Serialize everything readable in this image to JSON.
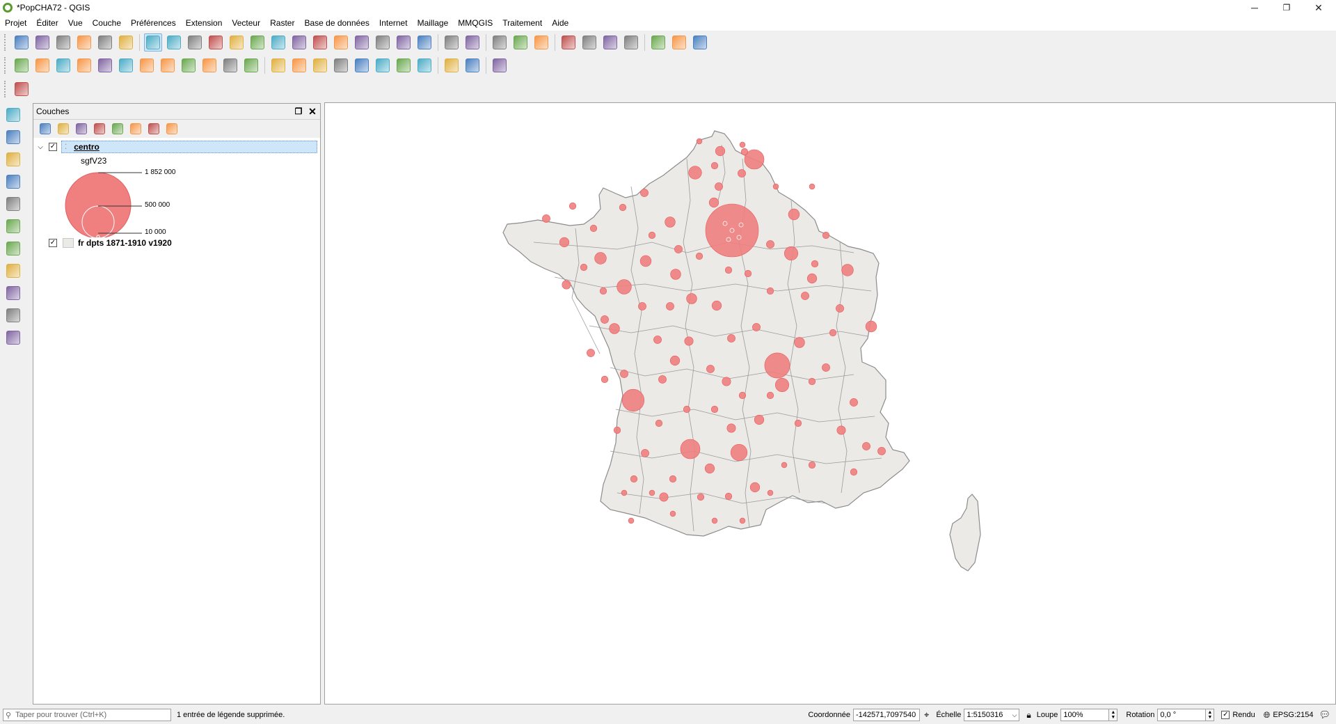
{
  "window": {
    "title": "*PopCHA72 - QGIS",
    "min": "─",
    "max": "❐",
    "close": "✕"
  },
  "menu": [
    "Projet",
    "Éditer",
    "Vue",
    "Couche",
    "Préférences",
    "Extension",
    "Vecteur",
    "Raster",
    "Base de données",
    "Internet",
    "Maillage",
    "MMQGIS",
    "Traitement",
    "Aide"
  ],
  "toolbar1_icons": [
    "new-project-icon",
    "open-project-icon",
    "save-project-icon",
    "new-print-layout-icon",
    "layout-manager-icon",
    "style-manager-icon",
    "|",
    "pan-icon",
    "pan-to-selection-icon",
    "zoom-in-icon",
    "zoom-out-icon",
    "zoom-native-icon",
    "zoom-full-icon",
    "zoom-to-selection-icon",
    "zoom-to-layer-icon",
    "zoom-last-icon",
    "zoom-next-icon",
    "new-map-view-icon",
    "new-bookmark-icon",
    "show-bookmarks-icon",
    "refresh-icon",
    "|",
    "identify-icon",
    "run-action-icon",
    "|",
    "select-features-icon",
    "select-by-value-icon",
    "deselect-icon",
    "|",
    "attribute-table-icon",
    "field-calculator-icon",
    "processing-toolbox-icon",
    "statistics-icon",
    "|",
    "measure-icon",
    "map-tips-icon",
    "text-annotation-icon"
  ],
  "toolbar2_icons": [
    "current-edits-icon",
    "toggle-editing-icon",
    "save-edits-icon",
    "digitize-icon",
    "vertex-tool-icon",
    "modify-attributes-icon",
    "delete-selected-icon",
    "cut-features-icon",
    "copy-features-icon",
    "paste-features-icon",
    "undo-icon",
    "redo-icon",
    "|",
    "label-toolbar-icon",
    "diagram-toolbar-icon",
    "highlight-pinned-labels-icon",
    "pin-labels-icon",
    "show-hide-labels-icon",
    "move-label-icon",
    "rotate-label-icon",
    "change-label-icon",
    "|",
    "qgis-cloud-icon",
    "python-console-icon",
    "|",
    "help-icon"
  ],
  "toolbar3_icons": [
    "mmqgis-icon"
  ],
  "left_toolbar_icons": [
    "add-vector-layer-icon",
    "add-raster-layer-icon",
    "add-mesh-layer-icon",
    "add-delimited-text-icon",
    "add-geopackage-icon",
    "add-spatialite-icon",
    "add-postgis-icon",
    "add-wms-icon",
    "add-wfs-icon",
    "add-wcs-icon",
    "add-virtual-layer-icon"
  ],
  "layers_panel": {
    "title": "Couches",
    "tool_icons": [
      "style-layer-icon",
      "add-group-icon",
      "manage-map-themes-icon",
      "filter-legend-icon",
      "filter-expression-icon",
      "expand-all-icon",
      "collapse-all-icon",
      "remove-layer-icon"
    ],
    "layers": [
      {
        "name": "centro",
        "checked": "✓",
        "field": "sgfV23",
        "legend_values": [
          "1 852 000",
          "500 000",
          "10 000"
        ]
      },
      {
        "name": "fr dpts 1871-1910 v1920",
        "checked": "✓"
      }
    ]
  },
  "status": {
    "search_placeholder": "Taper pour trouver (Ctrl+K)",
    "message": "1 entrée de légende supprimée.",
    "coord_label": "Coordonnée",
    "coord_value": "-142571,7097540",
    "scale_label": "Échelle",
    "scale_value": "1:5150316",
    "magnifier_label": "Loupe",
    "magnifier_value": "100%",
    "rotation_label": "Rotation",
    "rotation_value": "0,0 °",
    "render_label": "Rendu",
    "crs": "EPSG:2154"
  },
  "colors": {
    "symbol_fill": "#f08080",
    "symbol_stroke": "#e85a5a",
    "polygon_fill": "#eceae6",
    "polygon_stroke": "#8c8c8c",
    "selection": "#cfe5f8",
    "brand_green": "#5b9a2e"
  },
  "map": {
    "layers_drawn": [
      "fr dpts 1871-1910 v1920",
      "centro"
    ],
    "symbol_type": "proportional circles"
  }
}
